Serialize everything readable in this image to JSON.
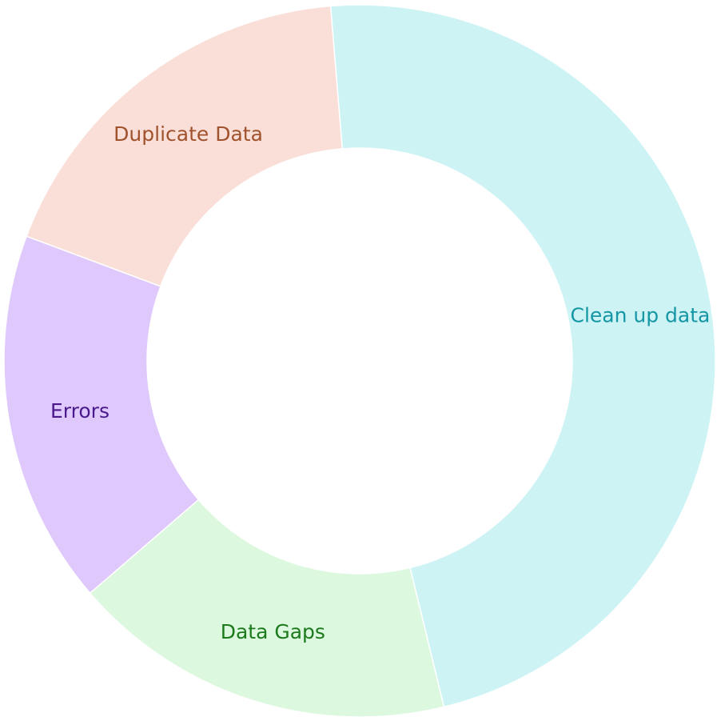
{
  "chart_data": {
    "type": "pie",
    "donut": true,
    "title": "",
    "legend": "none",
    "slices": [
      {
        "label": "Clean up data",
        "value": 47.5,
        "color": "#cdf3f5",
        "label_color": "#1596a4"
      },
      {
        "label": "Data Gaps",
        "value": 17.5,
        "color": "#dcf8de",
        "label_color": "#1c7a1c"
      },
      {
        "label": "Errors",
        "value": 17.0,
        "color": "#dfc8fc",
        "label_color": "#4a1a8c"
      },
      {
        "label": "Duplicate Data",
        "value": 18.0,
        "color": "#fadfd8",
        "label_color": "#a0522d"
      }
    ]
  }
}
